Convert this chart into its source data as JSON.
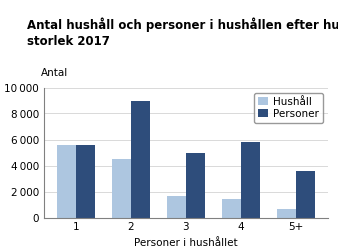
{
  "title_line1": "Antal hushåll och personer i hushållen efter hushållens",
  "title_line2": "storlek 2017",
  "ylabel_label": "Antal",
  "xlabel": "Personer i hushållet",
  "categories": [
    "1",
    "2",
    "3",
    "4",
    "5+"
  ],
  "hushall": [
    5600,
    4500,
    1650,
    1450,
    650
  ],
  "personer": [
    5600,
    8950,
    4950,
    5800,
    3600
  ],
  "color_hushall": "#adc6e0",
  "color_personer": "#2e4d7b",
  "ylim": [
    0,
    10000
  ],
  "yticks": [
    0,
    2000,
    4000,
    6000,
    8000,
    10000
  ],
  "legend_labels": [
    "Hushåll",
    "Personer"
  ],
  "title_fontsize": 8.5,
  "axis_fontsize": 7.5,
  "tick_fontsize": 7.5,
  "legend_fontsize": 7.5,
  "bar_width": 0.35
}
